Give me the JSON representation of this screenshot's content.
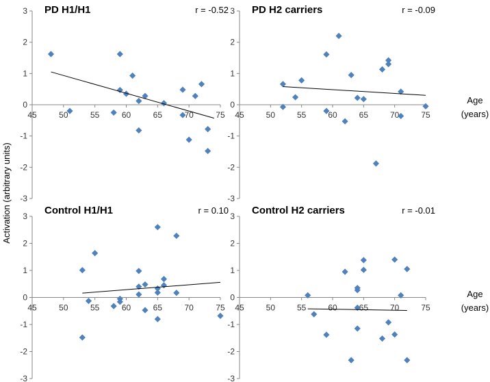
{
  "chart_data": {
    "type": "scatter",
    "ylabel": "Activation (arbitrary units)",
    "xlabel_line1": "Age",
    "xlabel_line2": "(years)",
    "marker_color": "#4f81bd",
    "xlim": [
      45,
      75
    ],
    "ylim": [
      -3,
      3
    ],
    "x_ticks": [
      45,
      50,
      55,
      60,
      65,
      70,
      75
    ],
    "y_ticks": [
      -3,
      -2,
      -1,
      0,
      1,
      2,
      3
    ],
    "panels": [
      {
        "title": "PD H1/H1",
        "r_label": "r = -0.52",
        "trend": {
          "x": [
            48,
            74
          ],
          "y": [
            1.05,
            -0.43
          ]
        },
        "points": [
          {
            "x": 48,
            "y": 1.62
          },
          {
            "x": 51,
            "y": -0.2
          },
          {
            "x": 58,
            "y": -0.25
          },
          {
            "x": 59,
            "y": 1.62
          },
          {
            "x": 59,
            "y": 0.47
          },
          {
            "x": 60,
            "y": 0.35
          },
          {
            "x": 61,
            "y": 0.93
          },
          {
            "x": 62,
            "y": 0.12
          },
          {
            "x": 62,
            "y": -0.82
          },
          {
            "x": 63,
            "y": 0.28
          },
          {
            "x": 66,
            "y": 0.05
          },
          {
            "x": 69,
            "y": 0.48
          },
          {
            "x": 69,
            "y": -0.33
          },
          {
            "x": 70,
            "y": -1.12
          },
          {
            "x": 71,
            "y": 0.28
          },
          {
            "x": 72,
            "y": 0.66
          },
          {
            "x": 73,
            "y": -0.78
          },
          {
            "x": 73,
            "y": -1.48
          }
        ]
      },
      {
        "title": "PD H2 carriers",
        "r_label": "r = -0.09",
        "trend": {
          "x": [
            52,
            75
          ],
          "y": [
            0.58,
            0.3
          ]
        },
        "points": [
          {
            "x": 52,
            "y": 0.66
          },
          {
            "x": 52,
            "y": -0.07
          },
          {
            "x": 54,
            "y": 0.24
          },
          {
            "x": 55,
            "y": 0.78
          },
          {
            "x": 59,
            "y": 1.61
          },
          {
            "x": 59,
            "y": -0.2
          },
          {
            "x": 61,
            "y": 2.2
          },
          {
            "x": 62,
            "y": -0.53
          },
          {
            "x": 63,
            "y": 0.95
          },
          {
            "x": 64,
            "y": 0.22
          },
          {
            "x": 65,
            "y": 0.18
          },
          {
            "x": 67,
            "y": -1.88
          },
          {
            "x": 68,
            "y": 1.13
          },
          {
            "x": 69,
            "y": 1.42
          },
          {
            "x": 69,
            "y": 1.3
          },
          {
            "x": 71,
            "y": 0.42
          },
          {
            "x": 71,
            "y": -0.36
          },
          {
            "x": 75,
            "y": -0.05
          }
        ]
      },
      {
        "title": "Control H1/H1",
        "r_label": "r = 0.10",
        "trend": {
          "x": [
            53,
            75
          ],
          "y": [
            0.16,
            0.56
          ]
        },
        "points": [
          {
            "x": 53,
            "y": 1.01
          },
          {
            "x": 53,
            "y": -1.48
          },
          {
            "x": 54,
            "y": -0.13
          },
          {
            "x": 55,
            "y": 1.64
          },
          {
            "x": 58,
            "y": -0.32
          },
          {
            "x": 59,
            "y": -0.05
          },
          {
            "x": 59,
            "y": -0.16
          },
          {
            "x": 62,
            "y": 0.98
          },
          {
            "x": 62,
            "y": 0.4
          },
          {
            "x": 62,
            "y": 0.11
          },
          {
            "x": 63,
            "y": 0.48
          },
          {
            "x": 63,
            "y": -0.47
          },
          {
            "x": 65,
            "y": 2.6
          },
          {
            "x": 65,
            "y": 0.33
          },
          {
            "x": 65,
            "y": 0.18
          },
          {
            "x": 65,
            "y": -0.8
          },
          {
            "x": 66,
            "y": 0.68
          },
          {
            "x": 66,
            "y": 0.45
          },
          {
            "x": 68,
            "y": 2.28
          },
          {
            "x": 68,
            "y": 0.17
          },
          {
            "x": 75,
            "y": -0.68
          }
        ]
      },
      {
        "title": "Control H2 carriers",
        "r_label": "r = -0.01",
        "trend": {
          "x": [
            56,
            72
          ],
          "y": [
            -0.42,
            -0.48
          ]
        },
        "points": [
          {
            "x": 56,
            "y": 0.08
          },
          {
            "x": 57,
            "y": -0.62
          },
          {
            "x": 59,
            "y": -1.38
          },
          {
            "x": 62,
            "y": 0.95
          },
          {
            "x": 63,
            "y": -2.32
          },
          {
            "x": 64,
            "y": 0.35
          },
          {
            "x": 64,
            "y": 0.27
          },
          {
            "x": 64,
            "y": -0.38
          },
          {
            "x": 64,
            "y": -1.15
          },
          {
            "x": 65,
            "y": 1.38
          },
          {
            "x": 65,
            "y": 1.02
          },
          {
            "x": 68,
            "y": -1.52
          },
          {
            "x": 69,
            "y": -0.92
          },
          {
            "x": 70,
            "y": 1.4
          },
          {
            "x": 70,
            "y": -1.37
          },
          {
            "x": 71,
            "y": 0.08
          },
          {
            "x": 72,
            "y": 1.05
          },
          {
            "x": 72,
            "y": -2.32
          }
        ]
      }
    ]
  }
}
